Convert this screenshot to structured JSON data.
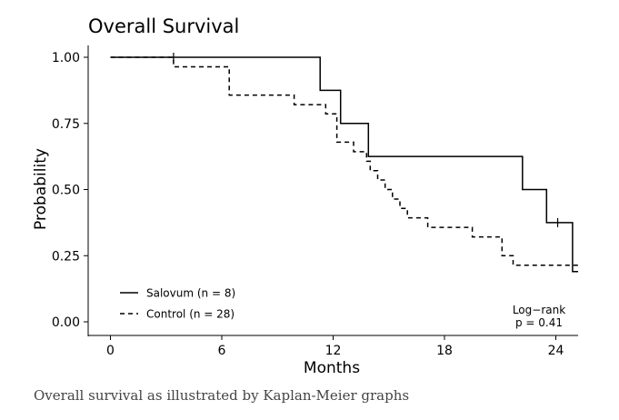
{
  "chart_data": {
    "type": "line",
    "subtype": "kaplan-meier step",
    "title": "Overall Survival",
    "xlabel": "Months",
    "ylabel": "Probability",
    "xlim": [
      -1.2,
      25.2
    ],
    "ylim": [
      0,
      1
    ],
    "x_ticks": [
      0,
      6,
      12,
      18,
      24
    ],
    "y_ticks": [
      0.0,
      0.25,
      0.5,
      0.75,
      1.0
    ],
    "x_tick_labels": [
      "0",
      "6",
      "12",
      "18",
      "24"
    ],
    "y_tick_labels": [
      "0.00",
      "0.25",
      "0.50",
      "0.75",
      "1.00"
    ],
    "grid": false,
    "legend_position": "bottom-left",
    "series": [
      {
        "name": "Salovum (n = 8)",
        "line_style": "solid",
        "color": "#000000",
        "steps": [
          [
            0,
            1.0
          ],
          [
            11.3,
            0.875
          ],
          [
            12.4,
            0.75
          ],
          [
            13.9,
            0.625
          ],
          [
            22.2,
            0.5
          ],
          [
            23.5,
            0.375
          ],
          [
            24.9,
            0.19
          ],
          [
            25.2,
            0.19
          ]
        ],
        "censor": [
          [
            24.1,
            0.375
          ]
        ]
      },
      {
        "name": "Control (n = 28)",
        "line_style": "dashed",
        "color": "#000000",
        "steps": [
          [
            0,
            1.0
          ],
          [
            3.4,
            0.964
          ],
          [
            6.4,
            0.857
          ],
          [
            9.9,
            0.821
          ],
          [
            11.6,
            0.786
          ],
          [
            12.2,
            0.679
          ],
          [
            13.1,
            0.643
          ],
          [
            13.8,
            0.607
          ],
          [
            14.0,
            0.571
          ],
          [
            14.4,
            0.536
          ],
          [
            14.8,
            0.5
          ],
          [
            15.2,
            0.464
          ],
          [
            15.6,
            0.429
          ],
          [
            16.0,
            0.393
          ],
          [
            17.1,
            0.357
          ],
          [
            19.5,
            0.321
          ],
          [
            21.1,
            0.25
          ],
          [
            21.7,
            0.214
          ],
          [
            25.2,
            0.214
          ]
        ],
        "censor": [
          [
            3.4,
            1.0
          ]
        ]
      }
    ],
    "annotations": [
      "Log−rank",
      "p = 0.41"
    ]
  },
  "caption": "Overall survival as illustrated by Kaplan-Meier graphs"
}
